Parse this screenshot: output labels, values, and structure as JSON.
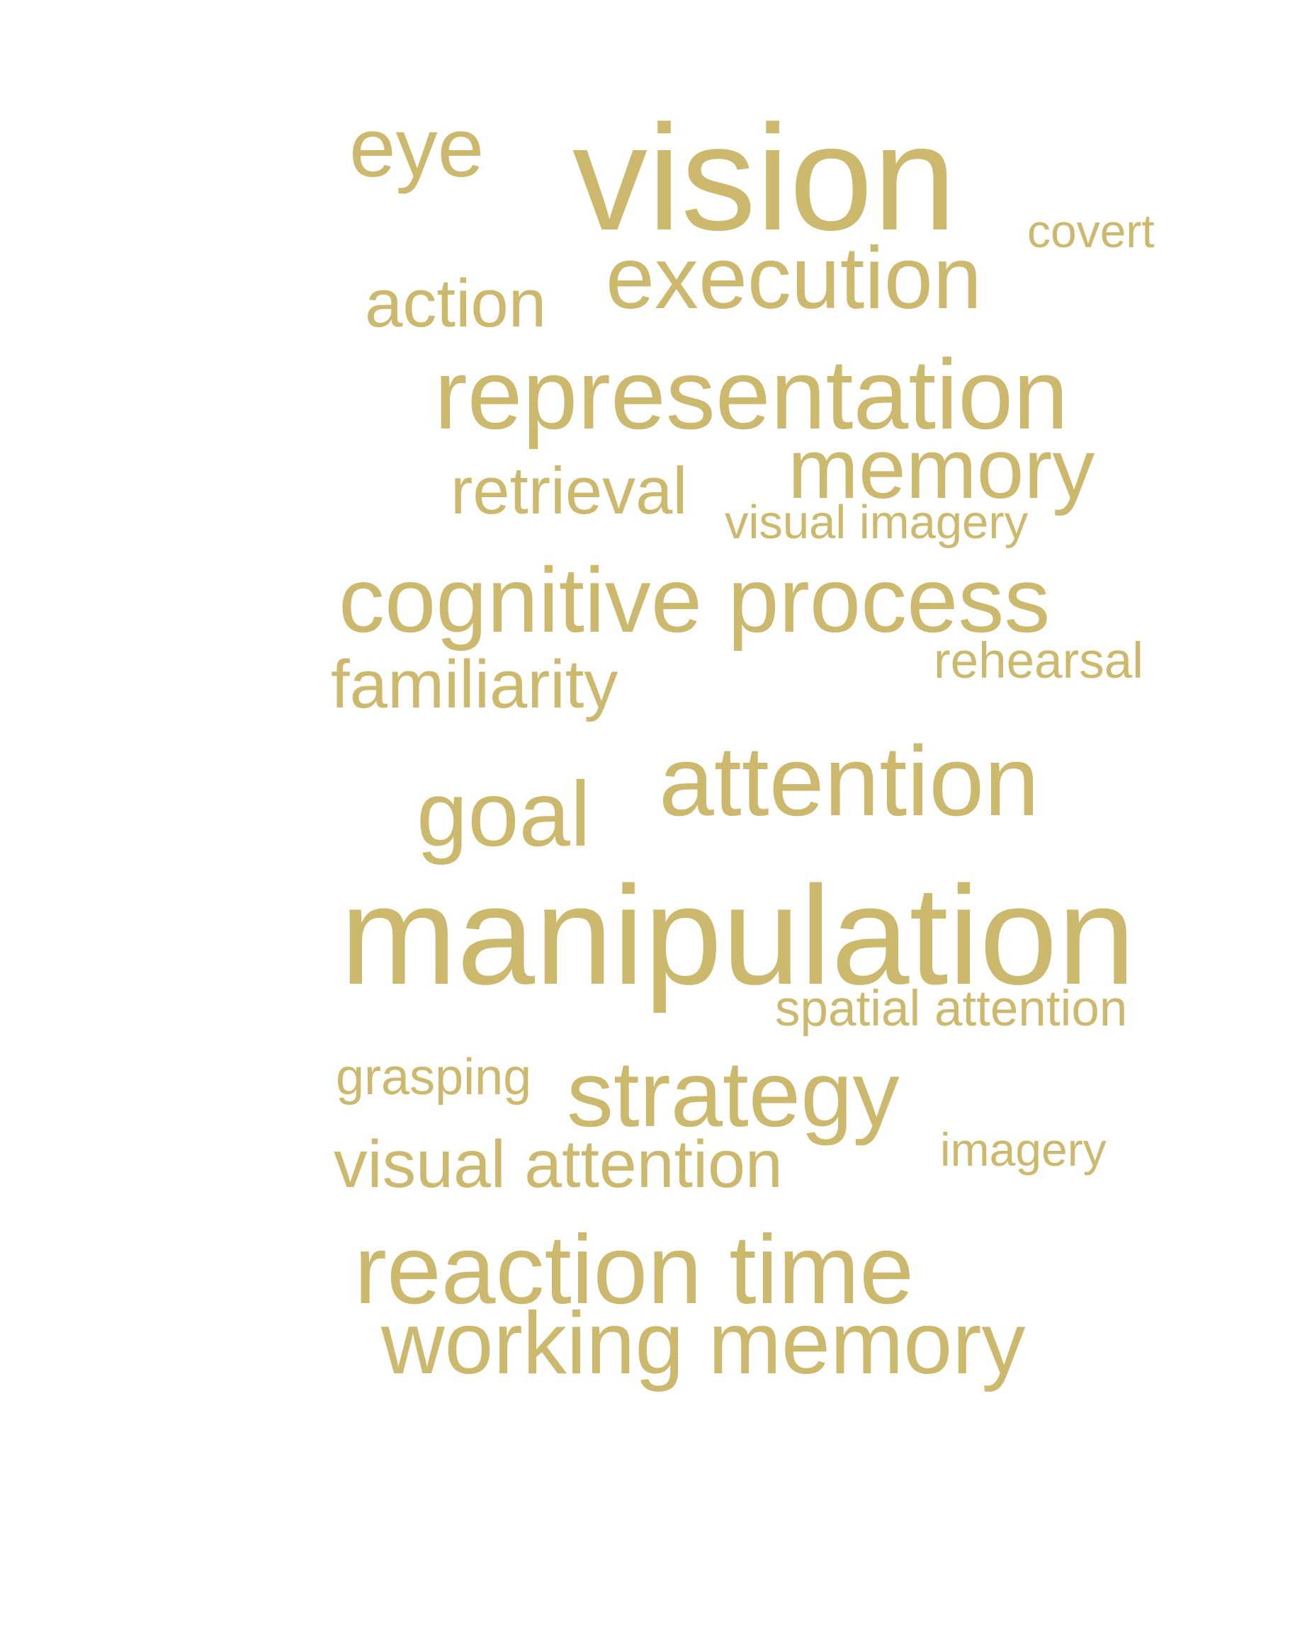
{
  "color": "#cdb96d",
  "words": {
    "vision": "vision",
    "eye": "eye",
    "covert": "covert",
    "execution": "execution",
    "action": "action",
    "representation": "representation",
    "memory": "memory",
    "retrieval": "retrieval",
    "visual_imagery": "visual imagery",
    "cognitive_process": "cognitive process",
    "rehearsal": "rehearsal",
    "familiarity": "familiarity",
    "attention": "attention",
    "goal": "goal",
    "manipulation": "manipulation",
    "spatial_attention": "spatial attention",
    "grasping": "grasping",
    "strategy": "strategy",
    "imagery": "imagery",
    "visual_attention": "visual attention",
    "reaction_time": "reaction time",
    "working_memory": "working memory"
  }
}
